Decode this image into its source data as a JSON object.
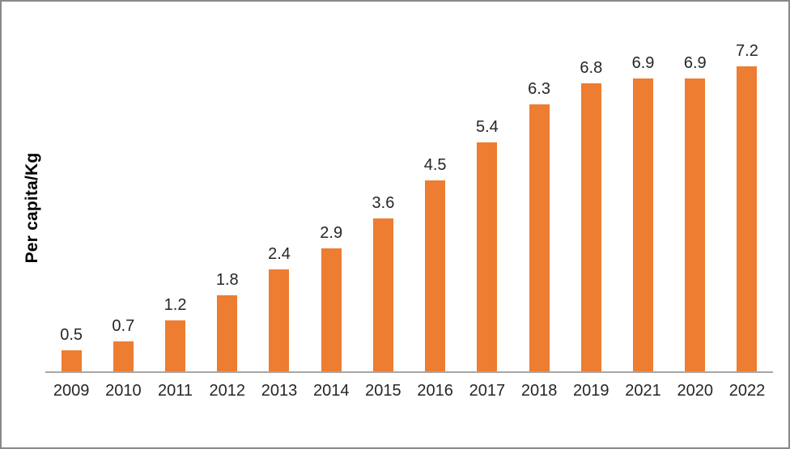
{
  "chart_data": {
    "type": "bar",
    "title": "",
    "xlabel": "",
    "ylabel": "Per capita/Kg",
    "categories": [
      "2009",
      "2010",
      "2011",
      "2012",
      "2013",
      "2014",
      "2015",
      "2016",
      "2017",
      "2018",
      "2019",
      "2021",
      "2020",
      "2022"
    ],
    "values": [
      0.5,
      0.7,
      1.2,
      1.8,
      2.4,
      2.9,
      3.6,
      4.5,
      5.4,
      6.3,
      6.8,
      6.9,
      6.9,
      7.2
    ],
    "value_labels": [
      "0.5",
      "0.7",
      "1.2",
      "1.8",
      "2.4",
      "2.9",
      "3.6",
      "4.5",
      "5.4",
      "6.3",
      "6.8",
      "6.9",
      "6.9",
      "7.2"
    ],
    "grid": false,
    "legend_position": "none",
    "colors": {
      "bar": "#ED7D31",
      "axis_line": "#A6A6A6",
      "label_text": "#262626",
      "ylabel_text": "#000000",
      "frame_border": "#898989",
      "background": "#FFFFFF"
    }
  }
}
